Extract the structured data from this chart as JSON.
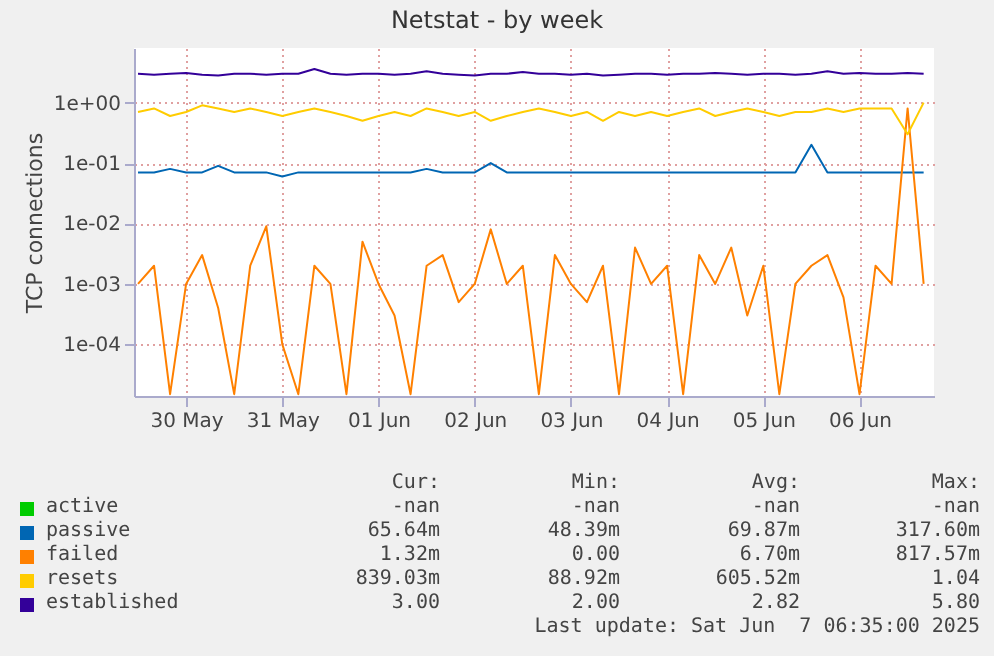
{
  "chart_data": {
    "type": "line",
    "title": "Netstat - by week",
    "ylabel": "TCP connections",
    "log": true,
    "grid": true,
    "legend": "bottom",
    "xlim": [
      "2025-05-29T23:00",
      "2025-06-07T06:35"
    ],
    "xticks": [
      {
        "value": "2025-05-30T12:00",
        "label": "30 May"
      },
      {
        "value": "2025-05-31T12:00",
        "label": "31 May"
      },
      {
        "value": "2025-06-01T12:00",
        "label": "01 Jun"
      },
      {
        "value": "2025-06-02T12:00",
        "label": "02 Jun"
      },
      {
        "value": "2025-06-03T12:00",
        "label": "03 Jun"
      },
      {
        "value": "2025-06-04T12:00",
        "label": "04 Jun"
      },
      {
        "value": "2025-06-05T12:00",
        "label": "05 Jun"
      },
      {
        "value": "2025-06-06T12:00",
        "label": "06 Jun"
      }
    ],
    "ylim": [
      1.4e-05,
      8
    ],
    "yticks": [
      {
        "value": 0.0001,
        "label": "1e-04"
      },
      {
        "value": 0.001,
        "label": "1e-03"
      },
      {
        "value": 0.01,
        "label": "1e-02"
      },
      {
        "value": 0.1,
        "label": "1e-01"
      },
      {
        "value": 1,
        "label": "1e+00"
      }
    ],
    "x": [
      "2025-05-30T00:00",
      "2025-05-30T04:00",
      "2025-05-30T08:00",
      "2025-05-30T12:00",
      "2025-05-30T16:00",
      "2025-05-30T20:00",
      "2025-05-31T00:00",
      "2025-05-31T04:00",
      "2025-05-31T08:00",
      "2025-05-31T12:00",
      "2025-05-31T16:00",
      "2025-05-31T20:00",
      "2025-06-01T00:00",
      "2025-06-01T04:00",
      "2025-06-01T08:00",
      "2025-06-01T12:00",
      "2025-06-01T16:00",
      "2025-06-01T20:00",
      "2025-06-02T00:00",
      "2025-06-02T04:00",
      "2025-06-02T08:00",
      "2025-06-02T12:00",
      "2025-06-02T16:00",
      "2025-06-02T20:00",
      "2025-06-03T00:00",
      "2025-06-03T04:00",
      "2025-06-03T08:00",
      "2025-06-03T12:00",
      "2025-06-03T16:00",
      "2025-06-03T20:00",
      "2025-06-04T00:00",
      "2025-06-04T04:00",
      "2025-06-04T08:00",
      "2025-06-04T12:00",
      "2025-06-04T16:00",
      "2025-06-04T20:00",
      "2025-06-05T00:00",
      "2025-06-05T04:00",
      "2025-06-05T08:00",
      "2025-06-05T12:00",
      "2025-06-05T16:00",
      "2025-06-05T20:00",
      "2025-06-06T00:00",
      "2025-06-06T04:00",
      "2025-06-06T08:00",
      "2025-06-06T12:00",
      "2025-06-06T16:00",
      "2025-06-06T20:00",
      "2025-06-07T00:00",
      "2025-06-07T04:00"
    ],
    "series": [
      {
        "name": "active",
        "color": "#00cc00",
        "values": [
          null,
          null,
          null,
          null,
          null,
          null,
          null,
          null,
          null,
          null,
          null,
          null,
          null,
          null,
          null,
          null,
          null,
          null,
          null,
          null,
          null,
          null,
          null,
          null,
          null,
          null,
          null,
          null,
          null,
          null,
          null,
          null,
          null,
          null,
          null,
          null,
          null,
          null,
          null,
          null,
          null,
          null,
          null,
          null,
          null,
          null,
          null,
          null,
          null,
          null
        ]
      },
      {
        "name": "passive",
        "color": "#0066b3",
        "values": [
          0.07,
          0.07,
          0.08,
          0.07,
          0.07,
          0.09,
          0.07,
          0.07,
          0.07,
          0.06,
          0.07,
          0.07,
          0.07,
          0.07,
          0.07,
          0.07,
          0.07,
          0.07,
          0.08,
          0.07,
          0.07,
          0.07,
          0.1,
          0.07,
          0.07,
          0.07,
          0.07,
          0.07,
          0.07,
          0.07,
          0.07,
          0.07,
          0.07,
          0.07,
          0.07,
          0.07,
          0.07,
          0.07,
          0.07,
          0.07,
          0.07,
          0.07,
          0.2,
          0.07,
          0.07,
          0.07,
          0.07,
          0.07,
          0.07,
          0.07
        ]
      },
      {
        "name": "failed",
        "color": "#ff8000",
        "values": [
          0.001,
          0.002,
          1.5e-05,
          0.001,
          0.003,
          0.0004,
          1.5e-05,
          0.002,
          0.009,
          0.0001,
          1.5e-05,
          0.002,
          0.001,
          1.5e-05,
          0.005,
          0.001,
          0.0003,
          1.5e-05,
          0.002,
          0.003,
          0.0005,
          0.001,
          0.008,
          0.001,
          0.002,
          1.5e-05,
          0.003,
          0.001,
          0.0005,
          0.002,
          1.5e-05,
          0.004,
          0.001,
          0.002,
          1.5e-05,
          0.003,
          0.001,
          0.004,
          0.0003,
          0.002,
          1.5e-05,
          0.001,
          0.002,
          0.003,
          0.0006,
          1.5e-05,
          0.002,
          0.001,
          0.8,
          0.001
        ]
      },
      {
        "name": "resets",
        "color": "#ffcc00",
        "values": [
          0.7,
          0.8,
          0.6,
          0.7,
          0.9,
          0.8,
          0.7,
          0.8,
          0.7,
          0.6,
          0.7,
          0.8,
          0.7,
          0.6,
          0.5,
          0.6,
          0.7,
          0.6,
          0.8,
          0.7,
          0.6,
          0.7,
          0.5,
          0.6,
          0.7,
          0.8,
          0.7,
          0.6,
          0.7,
          0.5,
          0.7,
          0.6,
          0.7,
          0.6,
          0.7,
          0.8,
          0.6,
          0.7,
          0.8,
          0.7,
          0.6,
          0.7,
          0.7,
          0.8,
          0.7,
          0.8,
          0.8,
          0.8,
          0.3,
          1.0
        ]
      },
      {
        "name": "established",
        "color": "#330099",
        "values": [
          3.0,
          2.9,
          3.0,
          3.1,
          2.9,
          2.8,
          3.0,
          3.0,
          2.9,
          3.0,
          3.0,
          3.6,
          3.0,
          2.9,
          3.0,
          3.0,
          2.9,
          3.0,
          3.3,
          3.0,
          2.9,
          2.8,
          3.0,
          3.0,
          3.2,
          3.0,
          3.0,
          2.9,
          3.0,
          2.8,
          2.9,
          3.0,
          3.0,
          2.9,
          3.0,
          3.0,
          3.1,
          3.0,
          2.9,
          3.0,
          3.0,
          2.9,
          3.0,
          3.3,
          3.0,
          3.1,
          3.0,
          3.0,
          3.1,
          3.0
        ]
      }
    ],
    "annotations": [
      "Cur:",
      "Min:",
      "Avg:",
      "Max:",
      "-nan",
      "-nan",
      "-nan",
      "-nan",
      "65.64m",
      "48.39m",
      "69.87m",
      "317.60m",
      "1.32m",
      "0.00",
      "6.70m",
      "817.57m",
      "839.03m",
      "88.92m",
      "605.52m",
      "1.04",
      "3.00",
      "2.00",
      "2.82",
      "5.80",
      "Last update: Sat Jun  7 06:35:00 2025"
    ]
  }
}
